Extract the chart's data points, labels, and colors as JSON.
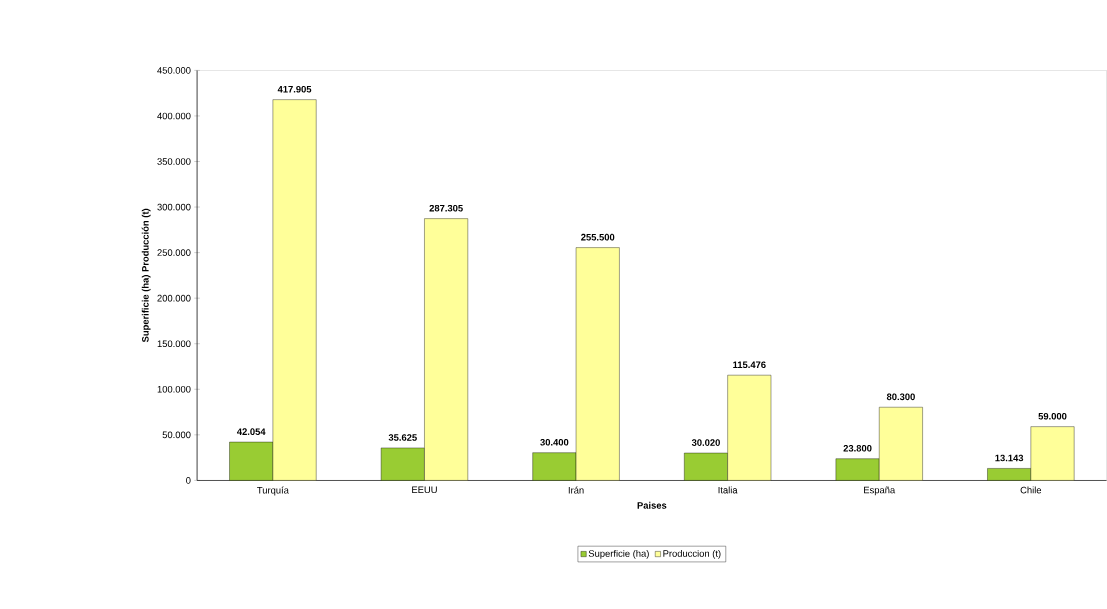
{
  "chart_data": {
    "type": "bar",
    "xlabel": "Paises",
    "ylabel": "Superificie (ha) Producción (t)",
    "categories": [
      "Turquía",
      "EEUU",
      "Irán",
      "Italia",
      "España",
      "Chile"
    ],
    "series": [
      {
        "name": "Superficie (ha)",
        "color": "#99cc33",
        "values": [
          42054,
          35625,
          30400,
          30020,
          23800,
          13143
        ],
        "value_labels": [
          "42.054",
          "35.625",
          "30.400",
          "30.020",
          "23.800",
          "13.143"
        ]
      },
      {
        "name": "Produccion (t)",
        "color": "#ffff99",
        "values": [
          417905,
          287305,
          255500,
          115476,
          80300,
          59000
        ],
        "value_labels": [
          "417.905",
          "287.305",
          "255.500",
          "115.476",
          "80.300",
          "59.000"
        ]
      }
    ],
    "ylim": [
      0,
      450000
    ],
    "yticks": [
      {
        "value": 0,
        "label": "0"
      },
      {
        "value": 50000,
        "label": "50.000"
      },
      {
        "value": 100000,
        "label": "100.000"
      },
      {
        "value": 150000,
        "label": "150.000"
      },
      {
        "value": 200000,
        "label": "200.000"
      },
      {
        "value": 250000,
        "label": "250.000"
      },
      {
        "value": 300000,
        "label": "300.000"
      },
      {
        "value": 350000,
        "label": "350.000"
      },
      {
        "value": 400000,
        "label": "400.000"
      },
      {
        "value": 450000,
        "label": "450.000"
      }
    ],
    "legend": "bottom"
  }
}
